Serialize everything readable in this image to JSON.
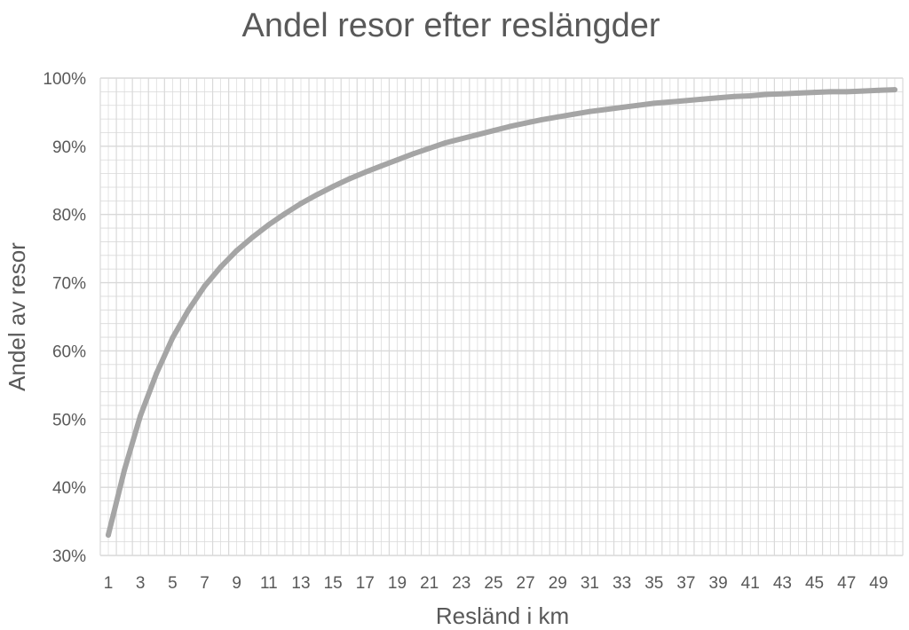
{
  "chart_data": {
    "type": "line",
    "title": "Andel resor efter reslängder",
    "xlabel": "Resländ i km",
    "ylabel": "Andel av resor",
    "x": [
      1,
      2,
      3,
      4,
      5,
      6,
      7,
      8,
      9,
      10,
      11,
      12,
      13,
      14,
      15,
      16,
      17,
      18,
      19,
      20,
      21,
      22,
      23,
      24,
      25,
      26,
      27,
      28,
      29,
      30,
      31,
      32,
      33,
      34,
      35,
      36,
      37,
      38,
      39,
      40,
      41,
      42,
      43,
      44,
      45,
      46,
      47,
      48,
      49,
      50
    ],
    "series": [
      {
        "values": [
          33.0,
          42.5,
          50.5,
          56.7,
          61.9,
          66.0,
          69.5,
          72.3,
          74.7,
          76.7,
          78.5,
          80.1,
          81.6,
          82.9,
          84.1,
          85.2,
          86.2,
          87.1,
          88.0,
          88.9,
          89.7,
          90.5,
          91.1,
          91.7,
          92.3,
          92.9,
          93.4,
          93.9,
          94.3,
          94.7,
          95.1,
          95.4,
          95.7,
          96.0,
          96.3,
          96.5,
          96.7,
          96.9,
          97.1,
          97.3,
          97.4,
          97.6,
          97.7,
          97.8,
          97.9,
          98.0,
          98.0,
          98.1,
          98.2,
          98.3
        ]
      }
    ],
    "x_tick_labels": [
      "1",
      "3",
      "5",
      "7",
      "9",
      "11",
      "13",
      "15",
      "17",
      "19",
      "21",
      "23",
      "25",
      "27",
      "29",
      "31",
      "33",
      "35",
      "37",
      "39",
      "41",
      "43",
      "45",
      "47",
      "49"
    ],
    "y_tick_labels": [
      "30%",
      "40%",
      "50%",
      "60%",
      "70%",
      "80%",
      "90%",
      "100%"
    ],
    "ylim": [
      30,
      100
    ],
    "grid": true,
    "legend": "none",
    "colors": {
      "line": "#a5a5a5",
      "grid": "#d9d9d9",
      "text": "#595959"
    }
  }
}
